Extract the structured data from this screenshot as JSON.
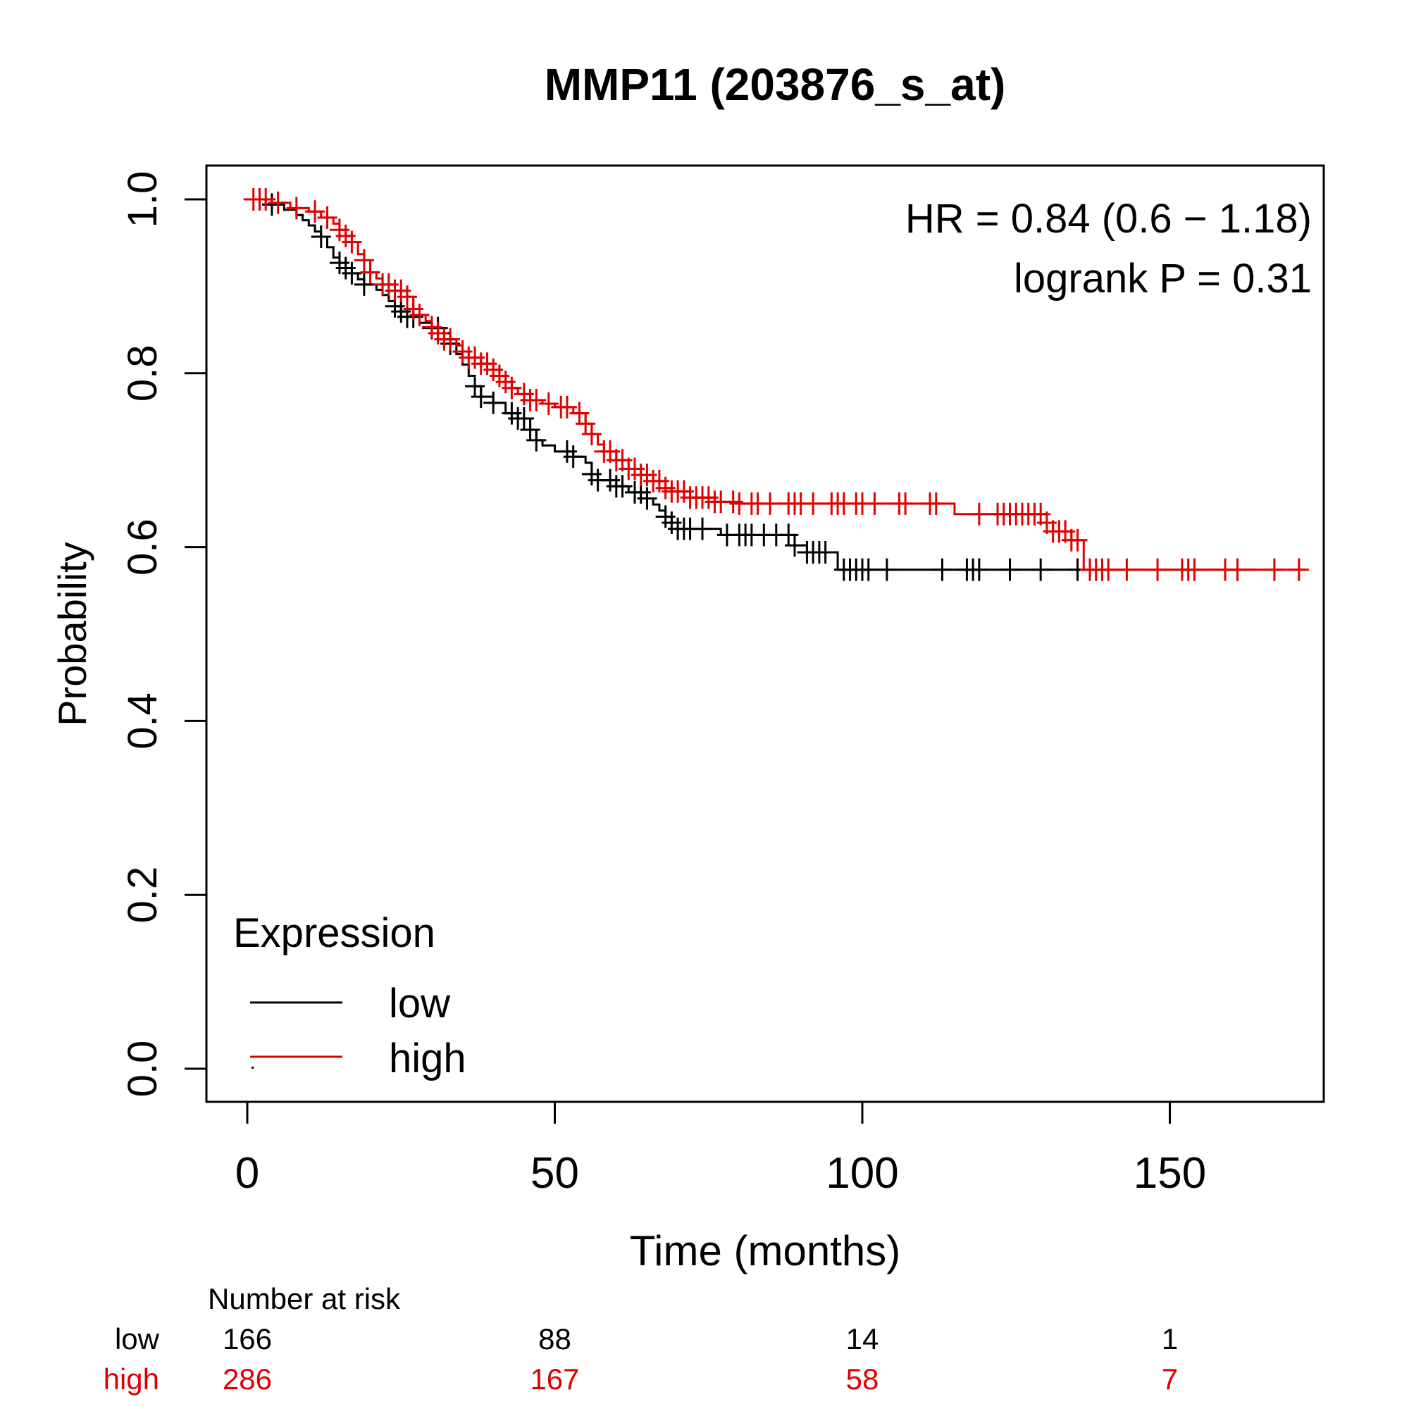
{
  "chart_data": {
    "type": "line",
    "subtype": "kaplan-meier",
    "title": "MMP11 (203876_s_at)",
    "xlabel": "Time (months)",
    "ylabel": "Probability",
    "xlim": [
      0,
      175
    ],
    "ylim": [
      0,
      1
    ],
    "x_ticks": [
      0,
      50,
      100,
      150
    ],
    "x_tick_labels": [
      "0",
      "50",
      "100",
      "150"
    ],
    "y_ticks": [
      0,
      0.2,
      0.4,
      0.6,
      0.8,
      1.0
    ],
    "y_tick_labels": [
      "0.0",
      "0.2",
      "0.4",
      "0.6",
      "0.8",
      "1.0"
    ],
    "grid": false,
    "annotations": [
      "HR = 0.84 (0.6 − 1.18)",
      "logrank P = 0.31"
    ],
    "annotation_position": "top-right",
    "legend": {
      "title": "Expression",
      "position": "bottom-left",
      "entries": [
        {
          "label": "low",
          "color": "#000000"
        },
        {
          "label": "high",
          "color": "#e00000"
        }
      ]
    },
    "series": [
      {
        "name": "low",
        "color": "#000000",
        "steps": [
          [
            0,
            1.0
          ],
          [
            3,
            0.994
          ],
          [
            6,
            0.988
          ],
          [
            8,
            0.982
          ],
          [
            9,
            0.976
          ],
          [
            10,
            0.97
          ],
          [
            11,
            0.963
          ],
          [
            12,
            0.957
          ],
          [
            13,
            0.945
          ],
          [
            14,
            0.933
          ],
          [
            15,
            0.927
          ],
          [
            16,
            0.921
          ],
          [
            17,
            0.915
          ],
          [
            18,
            0.908
          ],
          [
            19,
            0.902
          ],
          [
            21,
            0.896
          ],
          [
            22,
            0.89
          ],
          [
            23,
            0.883
          ],
          [
            24,
            0.877
          ],
          [
            25,
            0.871
          ],
          [
            26,
            0.865
          ],
          [
            28,
            0.858
          ],
          [
            30,
            0.852
          ],
          [
            32,
            0.846
          ],
          [
            33,
            0.834
          ],
          [
            34,
            0.822
          ],
          [
            35,
            0.81
          ],
          [
            36,
            0.797
          ],
          [
            37,
            0.785
          ],
          [
            38,
            0.773
          ],
          [
            40,
            0.766
          ],
          [
            42,
            0.754
          ],
          [
            44,
            0.748
          ],
          [
            46,
            0.735
          ],
          [
            47,
            0.723
          ],
          [
            48,
            0.717
          ],
          [
            50,
            0.71
          ],
          [
            53,
            0.704
          ],
          [
            55,
            0.697
          ],
          [
            56,
            0.684
          ],
          [
            57,
            0.677
          ],
          [
            60,
            0.67
          ],
          [
            62,
            0.663
          ],
          [
            65,
            0.656
          ],
          [
            66,
            0.649
          ],
          [
            67,
            0.642
          ],
          [
            68,
            0.635
          ],
          [
            69,
            0.628
          ],
          [
            70,
            0.621
          ],
          [
            77,
            0.614
          ],
          [
            89,
            0.602
          ],
          [
            91,
            0.594
          ],
          [
            96,
            0.574
          ],
          [
            164,
            0.574
          ]
        ],
        "censor_times": [
          2,
          4,
          12,
          15,
          16,
          17,
          19,
          24,
          25,
          26,
          27,
          30,
          31,
          33,
          37,
          38,
          40,
          43,
          44,
          45,
          46,
          47,
          52,
          53,
          56,
          57,
          59,
          60,
          61,
          63,
          64,
          65,
          68,
          69,
          70,
          71,
          72,
          74,
          78,
          80,
          81,
          82,
          84,
          86,
          88,
          89,
          91,
          92,
          93,
          94,
          97,
          98,
          99,
          100,
          101,
          104,
          113,
          117,
          118,
          119,
          124,
          129,
          135,
          161
        ]
      },
      {
        "name": "high",
        "color": "#e00000",
        "steps": [
          [
            0,
            1.0
          ],
          [
            4,
            0.996
          ],
          [
            7,
            0.99
          ],
          [
            10,
            0.986
          ],
          [
            12,
            0.979
          ],
          [
            14,
            0.972
          ],
          [
            15,
            0.965
          ],
          [
            16,
            0.958
          ],
          [
            17,
            0.951
          ],
          [
            18,
            0.937
          ],
          [
            19,
            0.93
          ],
          [
            20,
            0.916
          ],
          [
            21,
            0.909
          ],
          [
            22,
            0.902
          ],
          [
            24,
            0.895
          ],
          [
            26,
            0.888
          ],
          [
            27,
            0.874
          ],
          [
            28,
            0.867
          ],
          [
            29,
            0.86
          ],
          [
            30,
            0.853
          ],
          [
            31,
            0.846
          ],
          [
            32,
            0.839
          ],
          [
            34,
            0.832
          ],
          [
            35,
            0.825
          ],
          [
            36,
            0.818
          ],
          [
            38,
            0.811
          ],
          [
            40,
            0.804
          ],
          [
            41,
            0.797
          ],
          [
            42,
            0.79
          ],
          [
            43,
            0.783
          ],
          [
            44,
            0.776
          ],
          [
            46,
            0.769
          ],
          [
            48,
            0.765
          ],
          [
            50,
            0.761
          ],
          [
            53,
            0.754
          ],
          [
            55,
            0.742
          ],
          [
            56,
            0.73
          ],
          [
            57,
            0.718
          ],
          [
            58,
            0.71
          ],
          [
            60,
            0.7
          ],
          [
            62,
            0.69
          ],
          [
            64,
            0.683
          ],
          [
            66,
            0.676
          ],
          [
            68,
            0.668
          ],
          [
            69,
            0.664
          ],
          [
            72,
            0.657
          ],
          [
            76,
            0.652
          ],
          [
            80,
            0.65
          ],
          [
            115,
            0.638
          ],
          [
            130,
            0.628
          ],
          [
            131,
            0.618
          ],
          [
            134,
            0.608
          ],
          [
            136,
            0.574
          ],
          [
            172,
            0.574
          ]
        ],
        "censor_times": [
          1,
          2,
          3,
          5,
          8,
          11,
          13,
          15,
          16,
          17,
          19,
          20,
          22,
          23,
          24,
          25,
          26,
          27,
          28,
          30,
          31,
          32,
          33,
          35,
          36,
          37,
          38,
          39,
          40,
          41,
          42,
          43,
          45,
          46,
          47,
          49,
          51,
          52,
          54,
          55,
          56,
          58,
          59,
          60,
          61,
          62,
          63,
          64,
          65,
          66,
          67,
          68,
          69,
          70,
          71,
          72,
          73,
          74,
          75,
          76,
          77,
          79,
          80,
          82,
          83,
          85,
          88,
          89,
          90,
          92,
          95,
          96,
          97,
          99,
          100,
          102,
          106,
          107,
          111,
          112,
          119,
          122,
          123,
          124,
          125,
          126,
          127,
          128,
          129,
          130,
          131,
          132,
          133,
          134,
          135,
          137,
          138,
          139,
          140,
          143,
          148,
          152,
          153,
          154,
          159,
          161,
          167,
          171
        ]
      }
    ],
    "risk_table": {
      "title": "Number at risk",
      "times": [
        0,
        50,
        100,
        150
      ],
      "rows": [
        {
          "label": "low",
          "color": "#000000",
          "values": [
            166,
            88,
            14,
            1
          ]
        },
        {
          "label": "high",
          "color": "#e00000",
          "values": [
            286,
            167,
            58,
            7
          ]
        }
      ]
    }
  }
}
